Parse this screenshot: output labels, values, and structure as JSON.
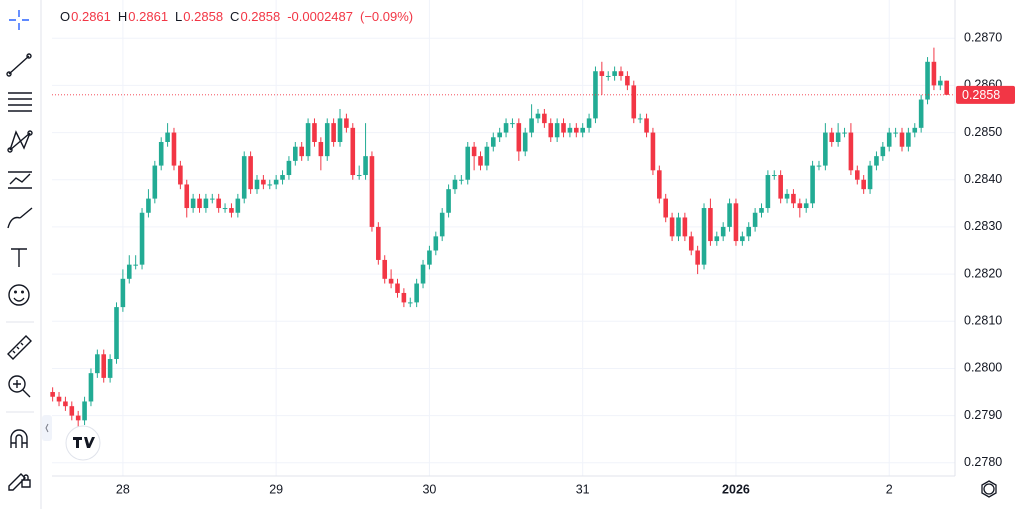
{
  "chart_data": {
    "type": "candlestick",
    "legend": {
      "open_key": "O",
      "open": 0.2861,
      "high_key": "H",
      "high": 0.2861,
      "low_key": "L",
      "low": 0.2858,
      "close_key": "C",
      "close": 0.2858,
      "change": -0.0002487,
      "change_percent": {
        "value": -0.09,
        "label": "(−0.09%)"
      }
    },
    "last_price": 0.2858,
    "up_color": "#22ab94",
    "down_color": "#f23645",
    "xlim": [
      -11.1,
      130.3
    ],
    "ylim": [
      0.27772,
      0.28781
    ],
    "xticks": [
      {
        "value": 0,
        "label": "28"
      },
      {
        "value": 24,
        "label": "29"
      },
      {
        "value": 48,
        "label": "30"
      },
      {
        "value": 72,
        "label": "31"
      },
      {
        "value": 96,
        "label": "2026"
      },
      {
        "value": 120,
        "label": "2"
      }
    ],
    "yticks": [
      {
        "value": 0.278,
        "label": "0.2780"
      },
      {
        "value": 0.279,
        "label": "0.2790"
      },
      {
        "value": 0.28,
        "label": "0.2800"
      },
      {
        "value": 0.281,
        "label": "0.2810"
      },
      {
        "value": 0.282,
        "label": "0.2820"
      },
      {
        "value": 0.283,
        "label": "0.2830"
      },
      {
        "value": 0.284,
        "label": "0.2840"
      },
      {
        "value": 0.285,
        "label": "0.2850"
      },
      {
        "value": 0.286,
        "label": "0.2860"
      },
      {
        "value": 0.287,
        "label": "0.2870"
      }
    ],
    "grid": true,
    "x": [
      -11,
      -10,
      -9,
      -8,
      -7,
      -6,
      -5,
      -4,
      -3,
      -2,
      -1,
      0,
      1,
      2,
      3,
      4,
      5,
      6,
      7,
      8,
      9,
      10,
      11,
      12,
      13,
      14,
      15,
      16,
      17,
      18,
      19,
      20,
      21,
      22,
      23,
      24,
      25,
      26,
      27,
      28,
      29,
      30,
      31,
      32,
      33,
      34,
      35,
      36,
      37,
      38,
      39,
      40,
      41,
      42,
      43,
      44,
      45,
      46,
      47,
      48,
      49,
      50,
      51,
      52,
      53,
      54,
      55,
      56,
      57,
      58,
      59,
      60,
      61,
      62,
      63,
      64,
      65,
      66,
      67,
      68,
      69,
      70,
      71,
      72,
      73,
      74,
      75,
      76,
      77,
      78,
      79,
      80,
      81,
      82,
      83,
      84,
      85,
      86,
      87,
      88,
      89,
      90,
      91,
      92,
      93,
      94,
      95,
      96,
      97,
      98,
      99,
      100,
      101,
      102,
      103,
      104,
      105,
      106,
      107,
      108,
      109,
      110,
      111,
      112,
      113,
      114,
      115,
      116,
      117,
      118,
      119,
      120,
      121,
      122,
      123,
      124,
      125,
      126,
      127,
      128,
      129
    ],
    "open": [
      0.2795,
      0.2794,
      0.2793,
      0.2792,
      0.279,
      0.2789,
      0.2793,
      0.2799,
      0.2803,
      0.2798,
      0.2802,
      0.2813,
      0.2819,
      0.2822,
      0.2822,
      0.2833,
      0.2836,
      0.2843,
      0.2848,
      0.285,
      0.2843,
      0.2839,
      0.2834,
      0.2836,
      0.2834,
      0.2836,
      0.2836,
      0.2834,
      0.2834,
      0.2833,
      0.2836,
      0.2845,
      0.2838,
      0.284,
      0.2839,
      0.2839,
      0.284,
      0.2841,
      0.2844,
      0.2847,
      0.2845,
      0.2852,
      0.2848,
      0.2845,
      0.2852,
      0.2848,
      0.2853,
      0.2851,
      0.2841,
      0.2841,
      0.2845,
      0.283,
      0.2823,
      0.2819,
      0.2818,
      0.2816,
      0.2814,
      0.2814,
      0.2818,
      0.2822,
      0.2825,
      0.2828,
      0.2833,
      0.2838,
      0.284,
      0.284,
      0.2847,
      0.2845,
      0.2843,
      0.2847,
      0.2849,
      0.285,
      0.2852,
      0.2852,
      0.2846,
      0.285,
      0.2853,
      0.2854,
      0.2852,
      0.2849,
      0.2852,
      0.285,
      0.2851,
      0.285,
      0.2851,
      0.2853,
      0.2863,
      0.2862,
      0.2862,
      0.2863,
      0.2862,
      0.286,
      0.2853,
      0.2853,
      0.285,
      0.2842,
      0.2836,
      0.2832,
      0.2828,
      0.2832,
      0.2828,
      0.2825,
      0.2822,
      0.2834,
      0.2827,
      0.2828,
      0.283,
      0.2835,
      0.2827,
      0.2828,
      0.283,
      0.2833,
      0.2834,
      0.2841,
      0.2841,
      0.2836,
      0.2837,
      0.2835,
      0.2834,
      0.2835,
      0.2843,
      0.2843,
      0.285,
      0.2848,
      0.285,
      0.285,
      0.2842,
      0.284,
      0.2838,
      0.2843,
      0.2845,
      0.2847,
      0.285,
      0.285,
      0.2847,
      0.285,
      0.2851,
      0.2857,
      0.2865,
      0.286,
      0.2861
    ],
    "high": [
      0.2796,
      0.2795,
      0.2794,
      0.2793,
      0.2791,
      0.2794,
      0.28,
      0.2804,
      0.2804,
      0.2803,
      0.2814,
      0.2821,
      0.2824,
      0.2824,
      0.2834,
      0.2838,
      0.2844,
      0.2849,
      0.2852,
      0.2851,
      0.2844,
      0.284,
      0.2837,
      0.2837,
      0.2837,
      0.2837,
      0.2837,
      0.2835,
      0.2835,
      0.2837,
      0.2846,
      0.2846,
      0.2841,
      0.2841,
      0.284,
      0.2841,
      0.2842,
      0.2845,
      0.2848,
      0.2848,
      0.2853,
      0.2853,
      0.2849,
      0.2853,
      0.2853,
      0.2855,
      0.2854,
      0.2852,
      0.2843,
      0.2852,
      0.2846,
      0.2831,
      0.2824,
      0.2821,
      0.2819,
      0.2817,
      0.2815,
      0.2819,
      0.2823,
      0.2826,
      0.2829,
      0.2834,
      0.2839,
      0.2841,
      0.2841,
      0.2848,
      0.2848,
      0.2846,
      0.2848,
      0.285,
      0.2851,
      0.2853,
      0.2853,
      0.2853,
      0.2851,
      0.2856,
      0.2855,
      0.2855,
      0.2853,
      0.2853,
      0.2853,
      0.2852,
      0.2852,
      0.2852,
      0.2854,
      0.2864,
      0.2865,
      0.2863,
      0.2864,
      0.2864,
      0.2863,
      0.2861,
      0.2854,
      0.2854,
      0.2851,
      0.2843,
      0.2837,
      0.2833,
      0.2833,
      0.2833,
      0.2829,
      0.2826,
      0.2835,
      0.2836,
      0.2829,
      0.2831,
      0.2836,
      0.2836,
      0.2829,
      0.2831,
      0.2834,
      0.2835,
      0.2842,
      0.2842,
      0.2842,
      0.2838,
      0.2838,
      0.2836,
      0.2836,
      0.2844,
      0.2844,
      0.2852,
      0.2851,
      0.2852,
      0.2851,
      0.2852,
      0.2843,
      0.2841,
      0.2844,
      0.2846,
      0.2848,
      0.2851,
      0.2851,
      0.2851,
      0.2851,
      0.2852,
      0.2858,
      0.2866,
      0.2868,
      0.2862,
      0.2861
    ],
    "low": [
      0.2793,
      0.2792,
      0.2791,
      0.2789,
      0.2787,
      0.2788,
      0.2792,
      0.2798,
      0.2797,
      0.2797,
      0.2801,
      0.2812,
      0.2818,
      0.2821,
      0.2821,
      0.2832,
      0.2835,
      0.2842,
      0.2847,
      0.2842,
      0.2838,
      0.2832,
      0.2833,
      0.2833,
      0.2833,
      0.2835,
      0.2833,
      0.2833,
      0.2832,
      0.2832,
      0.2835,
      0.2837,
      0.2837,
      0.2838,
      0.2838,
      0.2838,
      0.2839,
      0.284,
      0.2843,
      0.2844,
      0.2844,
      0.2847,
      0.2842,
      0.2844,
      0.2847,
      0.2847,
      0.285,
      0.284,
      0.284,
      0.284,
      0.2829,
      0.2822,
      0.2818,
      0.2817,
      0.2815,
      0.2813,
      0.2813,
      0.2813,
      0.2817,
      0.2821,
      0.2824,
      0.2827,
      0.2832,
      0.2837,
      0.2839,
      0.2839,
      0.2842,
      0.2842,
      0.2842,
      0.2846,
      0.2848,
      0.2849,
      0.2851,
      0.2844,
      0.2845,
      0.2849,
      0.2852,
      0.2851,
      0.2848,
      0.2848,
      0.2849,
      0.2849,
      0.2849,
      0.2849,
      0.285,
      0.2852,
      0.2858,
      0.2861,
      0.2861,
      0.2861,
      0.2859,
      0.2852,
      0.2852,
      0.2849,
      0.2841,
      0.2835,
      0.2831,
      0.2827,
      0.2827,
      0.2827,
      0.2824,
      0.282,
      0.2821,
      0.2826,
      0.2826,
      0.2827,
      0.2829,
      0.2826,
      0.2826,
      0.2827,
      0.2829,
      0.2832,
      0.2833,
      0.284,
      0.2835,
      0.2835,
      0.2834,
      0.2832,
      0.2833,
      0.2834,
      0.2842,
      0.2842,
      0.2847,
      0.2847,
      0.2849,
      0.2841,
      0.2839,
      0.2837,
      0.2837,
      0.2842,
      0.2844,
      0.2846,
      0.2849,
      0.2846,
      0.2846,
      0.2849,
      0.285,
      0.2856,
      0.2859,
      0.2859,
      0.2858
    ],
    "close": [
      0.2794,
      0.2793,
      0.2792,
      0.279,
      0.2789,
      0.2793,
      0.2799,
      0.2803,
      0.2798,
      0.2802,
      0.2813,
      0.2819,
      0.2822,
      0.2822,
      0.2833,
      0.2836,
      0.2843,
      0.2848,
      0.285,
      0.2843,
      0.2839,
      0.2834,
      0.2836,
      0.2834,
      0.2836,
      0.2836,
      0.2834,
      0.2834,
      0.2833,
      0.2836,
      0.2845,
      0.2838,
      0.284,
      0.2839,
      0.2839,
      0.284,
      0.2841,
      0.2844,
      0.2847,
      0.2845,
      0.2852,
      0.2848,
      0.2845,
      0.2852,
      0.2848,
      0.2853,
      0.2851,
      0.2841,
      0.2841,
      0.2845,
      0.283,
      0.2823,
      0.2819,
      0.2818,
      0.2816,
      0.2814,
      0.2814,
      0.2818,
      0.2822,
      0.2825,
      0.2828,
      0.2833,
      0.2838,
      0.284,
      0.284,
      0.2847,
      0.2845,
      0.2843,
      0.2847,
      0.2849,
      0.285,
      0.2852,
      0.2852,
      0.2846,
      0.285,
      0.2853,
      0.2854,
      0.2852,
      0.2849,
      0.2852,
      0.285,
      0.2851,
      0.285,
      0.2851,
      0.2853,
      0.2863,
      0.2862,
      0.2862,
      0.2863,
      0.2862,
      0.286,
      0.2853,
      0.2853,
      0.285,
      0.2842,
      0.2836,
      0.2832,
      0.2828,
      0.2832,
      0.2828,
      0.2825,
      0.2822,
      0.2834,
      0.2827,
      0.2828,
      0.283,
      0.2835,
      0.2827,
      0.2828,
      0.283,
      0.2833,
      0.2834,
      0.2841,
      0.2841,
      0.2836,
      0.2837,
      0.2835,
      0.2834,
      0.2835,
      0.2843,
      0.2843,
      0.285,
      0.2848,
      0.285,
      0.285,
      0.2842,
      0.284,
      0.2838,
      0.2843,
      0.2845,
      0.2847,
      0.285,
      0.285,
      0.2847,
      0.285,
      0.2851,
      0.2857,
      0.2865,
      0.286,
      0.2861,
      0.2858
    ]
  }
}
